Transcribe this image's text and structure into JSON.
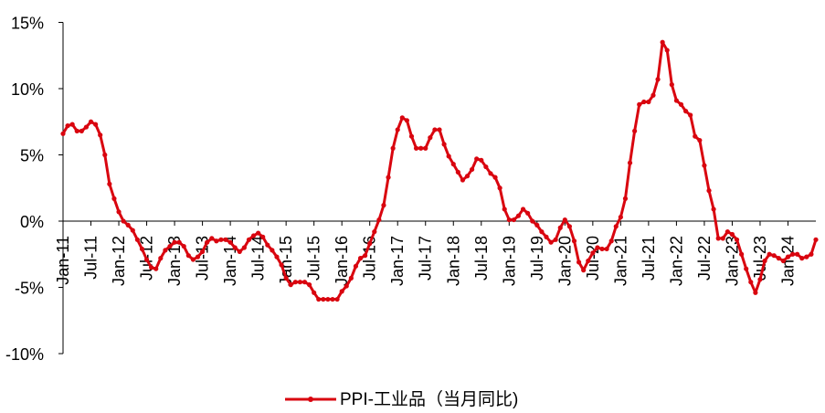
{
  "chart_data": {
    "type": "line",
    "y_tick_labels": [
      "15%",
      "10%",
      "5%",
      "0%",
      "-5%",
      "-10%"
    ],
    "y_ticks": [
      15,
      10,
      5,
      0,
      -5,
      -10
    ],
    "ylim": [
      -10,
      15
    ],
    "x_tick_labels": [
      "Jan-11",
      "Jul-11",
      "Jan-12",
      "Jul-12",
      "Jan-13",
      "Jul-13",
      "Jan-14",
      "Jul-14",
      "Jan-15",
      "Jul-15",
      "Jan-16",
      "Jul-16",
      "Jan-17",
      "Jul-17",
      "Jan-18",
      "Jul-18",
      "Jan-19",
      "Jul-19",
      "Jan-20",
      "Jul-20",
      "Jan-21",
      "Jul-21",
      "Jan-22",
      "Jul-22",
      "Jan-23",
      "Jul-23",
      "Jan-24"
    ],
    "x_start": "2011-01",
    "grid": false,
    "legend_position": "bottom-center",
    "series": [
      {
        "name": "PPI-工业品（当月同比)",
        "color": "#d9050f",
        "values": [
          6.6,
          7.2,
          7.3,
          6.8,
          6.8,
          7.1,
          7.5,
          7.3,
          6.5,
          5.0,
          2.8,
          1.7,
          0.7,
          0.0,
          -0.3,
          -0.7,
          -1.4,
          -2.1,
          -2.9,
          -3.5,
          -3.6,
          -2.8,
          -2.2,
          -1.9,
          -1.6,
          -1.6,
          -1.9,
          -2.6,
          -2.9,
          -2.7,
          -2.3,
          -1.6,
          -1.3,
          -1.5,
          -1.4,
          -1.4,
          -1.6,
          -2.0,
          -2.3,
          -2.0,
          -1.4,
          -1.1,
          -0.9,
          -1.2,
          -1.8,
          -2.2,
          -2.7,
          -3.3,
          -4.3,
          -4.8,
          -4.6,
          -4.6,
          -4.6,
          -4.8,
          -5.4,
          -5.9,
          -5.9,
          -5.9,
          -5.9,
          -5.9,
          -5.3,
          -4.9,
          -4.3,
          -3.4,
          -2.8,
          -2.6,
          -1.7,
          -0.8,
          0.1,
          1.2,
          3.3,
          5.5,
          6.9,
          7.8,
          7.6,
          6.4,
          5.5,
          5.5,
          5.5,
          6.3,
          6.9,
          6.9,
          5.8,
          4.9,
          4.3,
          3.7,
          3.1,
          3.4,
          3.9,
          4.7,
          4.6,
          4.1,
          3.6,
          3.3,
          2.5,
          0.9,
          0.1,
          0.1,
          0.4,
          0.9,
          0.6,
          0.0,
          -0.3,
          -0.8,
          -1.2,
          -1.6,
          -1.4,
          -0.5,
          0.1,
          -0.4,
          -1.5,
          -3.1,
          -3.7,
          -3.0,
          -2.4,
          -2.0,
          -2.1,
          -2.1,
          -1.5,
          -0.4,
          0.3,
          1.7,
          4.4,
          6.8,
          8.8,
          9.0,
          9.0,
          9.5,
          10.7,
          13.5,
          12.9,
          10.3,
          9.1,
          8.8,
          8.3,
          8.0,
          6.4,
          6.1,
          4.2,
          2.3,
          0.9,
          -1.3,
          -1.3,
          -0.8,
          -1.0,
          -1.4,
          -2.5,
          -3.6,
          -4.6,
          -5.4,
          -4.4,
          -3.0,
          -2.5,
          -2.6,
          -2.8,
          -3.0,
          -2.7,
          -2.5,
          -2.5,
          -2.8,
          -2.7,
          -2.5,
          -1.4
        ]
      }
    ]
  }
}
